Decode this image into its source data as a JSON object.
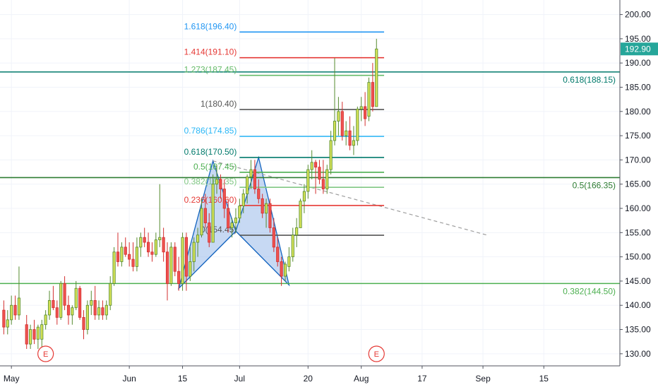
{
  "chart_data": {
    "type": "candlestick",
    "y_axis": {
      "min": 127.5,
      "max": 203,
      "ticks": [
        "130.00",
        "135.00",
        "140.00",
        "145.00",
        "150.00",
        "155.00",
        "160.00",
        "165.00",
        "170.00",
        "175.00",
        "180.00",
        "185.00",
        "190.00",
        "195.00",
        "200.00"
      ],
      "tick_values": [
        130,
        135,
        140,
        145,
        150,
        155,
        160,
        165,
        170,
        175,
        180,
        185,
        190,
        195,
        200
      ],
      "position": "right"
    },
    "x_axis": {
      "labels": [
        "May",
        "Jun",
        "15",
        "Jul",
        "20",
        "Aug",
        "17",
        "Sep",
        "15"
      ],
      "label_days": [
        2,
        33,
        47,
        62,
        80,
        94,
        110,
        126,
        142
      ],
      "day_range": [
        -1,
        162
      ]
    },
    "last_price": {
      "label": "192.90",
      "value": 192.9,
      "color": "#26a69a"
    },
    "colors": {
      "up": "#d4e157",
      "up_border": "#558b2f",
      "down": "#ef5350",
      "down_border": "#d32f2f"
    },
    "candles": [
      {
        "d": 0,
        "o": 139,
        "h": 141,
        "l": 134,
        "c": 135.5
      },
      {
        "d": 1,
        "o": 135.5,
        "h": 139,
        "l": 134,
        "c": 137
      },
      {
        "d": 2,
        "o": 137,
        "h": 142,
        "l": 136,
        "c": 140
      },
      {
        "d": 3,
        "o": 140,
        "h": 142,
        "l": 137,
        "c": 138
      },
      {
        "d": 4,
        "o": 138,
        "h": 148,
        "l": 137,
        "c": 141.5
      },
      {
        "d": 6,
        "o": 136,
        "h": 138,
        "l": 131,
        "c": 132
      },
      {
        "d": 7,
        "o": 132,
        "h": 136,
        "l": 131,
        "c": 135
      },
      {
        "d": 8,
        "o": 135,
        "h": 137,
        "l": 132,
        "c": 133
      },
      {
        "d": 9,
        "o": 133,
        "h": 136,
        "l": 131,
        "c": 135.5
      },
      {
        "d": 10,
        "o": 133,
        "h": 137,
        "l": 131,
        "c": 136
      },
      {
        "d": 11,
        "o": 136,
        "h": 139,
        "l": 135,
        "c": 138
      },
      {
        "d": 12,
        "o": 138,
        "h": 143,
        "l": 137,
        "c": 141
      },
      {
        "d": 13,
        "o": 141,
        "h": 144,
        "l": 139,
        "c": 139.5
      },
      {
        "d": 14,
        "o": 139.5,
        "h": 141,
        "l": 136,
        "c": 137.5
      },
      {
        "d": 15,
        "o": 137.5,
        "h": 145,
        "l": 137,
        "c": 144.5
      },
      {
        "d": 16,
        "o": 144.5,
        "h": 146,
        "l": 139,
        "c": 140
      },
      {
        "d": 17,
        "o": 140,
        "h": 142,
        "l": 136,
        "c": 138
      },
      {
        "d": 18,
        "o": 138,
        "h": 140,
        "l": 136,
        "c": 139.5
      },
      {
        "d": 19,
        "o": 139.5,
        "h": 145,
        "l": 139,
        "c": 143.5
      },
      {
        "d": 20,
        "o": 143.5,
        "h": 144,
        "l": 137,
        "c": 137.5
      },
      {
        "d": 21,
        "o": 137.5,
        "h": 139,
        "l": 133,
        "c": 135
      },
      {
        "d": 22,
        "o": 135,
        "h": 141,
        "l": 134,
        "c": 140
      },
      {
        "d": 23,
        "o": 140,
        "h": 143,
        "l": 138,
        "c": 141
      },
      {
        "d": 24,
        "o": 141,
        "h": 144,
        "l": 137,
        "c": 138
      },
      {
        "d": 25,
        "o": 138,
        "h": 141,
        "l": 137,
        "c": 139.5
      },
      {
        "d": 26,
        "o": 139.5,
        "h": 141,
        "l": 137,
        "c": 138
      },
      {
        "d": 27,
        "o": 138,
        "h": 141,
        "l": 137,
        "c": 140
      },
      {
        "d": 28,
        "o": 140,
        "h": 146,
        "l": 139,
        "c": 144.5
      },
      {
        "d": 29,
        "o": 144.5,
        "h": 152,
        "l": 144,
        "c": 151
      },
      {
        "d": 30,
        "o": 151,
        "h": 155,
        "l": 148,
        "c": 149
      },
      {
        "d": 31,
        "o": 149,
        "h": 153,
        "l": 148,
        "c": 152
      },
      {
        "d": 32,
        "o": 152,
        "h": 154,
        "l": 150,
        "c": 150.5
      },
      {
        "d": 33,
        "o": 150.5,
        "h": 153,
        "l": 148,
        "c": 149.5
      },
      {
        "d": 34,
        "o": 149.5,
        "h": 153,
        "l": 147,
        "c": 148
      },
      {
        "d": 35,
        "o": 148,
        "h": 154,
        "l": 147,
        "c": 152
      },
      {
        "d": 36,
        "o": 152,
        "h": 155,
        "l": 150,
        "c": 154
      },
      {
        "d": 37,
        "o": 154,
        "h": 156,
        "l": 152,
        "c": 153
      },
      {
        "d": 38,
        "o": 153,
        "h": 155,
        "l": 150,
        "c": 151
      },
      {
        "d": 39,
        "o": 151,
        "h": 153,
        "l": 149,
        "c": 150.5
      },
      {
        "d": 40,
        "o": 150.5,
        "h": 155,
        "l": 150,
        "c": 153.5
      },
      {
        "d": 41,
        "o": 153.5,
        "h": 165,
        "l": 152,
        "c": 154
      },
      {
        "d": 42,
        "o": 154,
        "h": 156,
        "l": 149,
        "c": 151
      },
      {
        "d": 43,
        "o": 151,
        "h": 153,
        "l": 141,
        "c": 144.5
      },
      {
        "d": 44,
        "o": 144.5,
        "h": 153,
        "l": 144,
        "c": 152
      },
      {
        "d": 45,
        "o": 152,
        "h": 153,
        "l": 146,
        "c": 147
      },
      {
        "d": 46,
        "o": 147,
        "h": 150,
        "l": 143,
        "c": 144.5
      },
      {
        "d": 47,
        "o": 144.5,
        "h": 155,
        "l": 143,
        "c": 154
      },
      {
        "d": 48,
        "o": 154,
        "h": 155,
        "l": 143,
        "c": 146
      },
      {
        "d": 49,
        "o": 146,
        "h": 152,
        "l": 145,
        "c": 149
      },
      {
        "d": 50,
        "o": 149,
        "h": 154,
        "l": 147,
        "c": 153
      },
      {
        "d": 51,
        "o": 153,
        "h": 156,
        "l": 150,
        "c": 154.5
      },
      {
        "d": 52,
        "o": 154.5,
        "h": 162,
        "l": 154,
        "c": 160
      },
      {
        "d": 53,
        "o": 160,
        "h": 163,
        "l": 156,
        "c": 157
      },
      {
        "d": 54,
        "o": 157,
        "h": 159,
        "l": 152,
        "c": 153
      },
      {
        "d": 55,
        "o": 153,
        "h": 167,
        "l": 153,
        "c": 165
      },
      {
        "d": 56,
        "o": 165,
        "h": 169,
        "l": 163,
        "c": 166
      },
      {
        "d": 57,
        "o": 166,
        "h": 167,
        "l": 162,
        "c": 164
      },
      {
        "d": 58,
        "o": 164,
        "h": 166,
        "l": 158,
        "c": 160
      },
      {
        "d": 59,
        "o": 160,
        "h": 162,
        "l": 155,
        "c": 156
      },
      {
        "d": 60,
        "o": 156,
        "h": 158,
        "l": 154,
        "c": 157
      },
      {
        "d": 61,
        "o": 157,
        "h": 160,
        "l": 155,
        "c": 158
      },
      {
        "d": 62,
        "o": 158,
        "h": 162,
        "l": 157,
        "c": 160.5
      },
      {
        "d": 63,
        "o": 160.5,
        "h": 164,
        "l": 159,
        "c": 163
      },
      {
        "d": 64,
        "o": 163,
        "h": 167,
        "l": 161,
        "c": 166.5
      },
      {
        "d": 65,
        "o": 166.5,
        "h": 170,
        "l": 164,
        "c": 168
      },
      {
        "d": 66,
        "o": 168,
        "h": 170,
        "l": 163,
        "c": 164
      },
      {
        "d": 67,
        "o": 164,
        "h": 166,
        "l": 161,
        "c": 162
      },
      {
        "d": 68,
        "o": 162,
        "h": 163,
        "l": 158,
        "c": 159
      },
      {
        "d": 69,
        "o": 159,
        "h": 162,
        "l": 156,
        "c": 161
      },
      {
        "d": 70,
        "o": 161,
        "h": 162,
        "l": 155,
        "c": 156
      },
      {
        "d": 71,
        "o": 156,
        "h": 158,
        "l": 151,
        "c": 152
      },
      {
        "d": 72,
        "o": 152,
        "h": 154,
        "l": 148,
        "c": 149
      },
      {
        "d": 73,
        "o": 149,
        "h": 150,
        "l": 144,
        "c": 146
      },
      {
        "d": 74,
        "o": 146,
        "h": 149,
        "l": 145,
        "c": 148.5
      },
      {
        "d": 75,
        "o": 148,
        "h": 152,
        "l": 147,
        "c": 150
      },
      {
        "d": 76,
        "o": 150,
        "h": 156,
        "l": 149,
        "c": 154.5
      },
      {
        "d": 77,
        "o": 154.5,
        "h": 158,
        "l": 152,
        "c": 156
      },
      {
        "d": 78,
        "o": 156,
        "h": 162,
        "l": 156,
        "c": 161.5
      },
      {
        "d": 79,
        "o": 161.5,
        "h": 165,
        "l": 159,
        "c": 163.5
      },
      {
        "d": 80,
        "o": 163.5,
        "h": 169,
        "l": 162,
        "c": 168
      },
      {
        "d": 81,
        "o": 168,
        "h": 172,
        "l": 166,
        "c": 169.5
      },
      {
        "d": 82,
        "o": 169.5,
        "h": 170,
        "l": 163,
        "c": 168.5
      },
      {
        "d": 83,
        "o": 168.5,
        "h": 170,
        "l": 165,
        "c": 166
      },
      {
        "d": 84,
        "o": 166,
        "h": 170,
        "l": 163,
        "c": 164
      },
      {
        "d": 85,
        "o": 164,
        "h": 169,
        "l": 163,
        "c": 168
      },
      {
        "d": 86,
        "o": 168,
        "h": 176,
        "l": 167,
        "c": 174
      },
      {
        "d": 87,
        "o": 174,
        "h": 191,
        "l": 173,
        "c": 178
      },
      {
        "d": 88,
        "o": 178,
        "h": 183,
        "l": 175,
        "c": 180
      },
      {
        "d": 89,
        "o": 180,
        "h": 182,
        "l": 174,
        "c": 175
      },
      {
        "d": 90,
        "o": 175,
        "h": 178,
        "l": 173,
        "c": 176
      },
      {
        "d": 91,
        "o": 176,
        "h": 179,
        "l": 172,
        "c": 173
      },
      {
        "d": 92,
        "o": 173,
        "h": 177,
        "l": 171,
        "c": 174
      },
      {
        "d": 93,
        "o": 174,
        "h": 181,
        "l": 173,
        "c": 180.5
      },
      {
        "d": 94,
        "o": 180.5,
        "h": 183,
        "l": 178,
        "c": 181
      },
      {
        "d": 95,
        "o": 181,
        "h": 184,
        "l": 177,
        "c": 178.5
      },
      {
        "d": 96,
        "o": 179,
        "h": 187,
        "l": 178,
        "c": 186
      },
      {
        "d": 97,
        "o": 186,
        "h": 190,
        "l": 180,
        "c": 181
      },
      {
        "d": 98,
        "o": 181,
        "h": 195,
        "l": 181,
        "c": 192.9
      }
    ],
    "fib_levels": [
      {
        "label": "1.618(196.40)",
        "value": 196.4,
        "color": "#2196f3",
        "d_start": 62,
        "d_end": 100
      },
      {
        "label": "1.414(191.10)",
        "value": 191.1,
        "color": "#e53935",
        "d_start": 62,
        "d_end": 100
      },
      {
        "label": "1.273(187.45)",
        "value": 187.45,
        "color": "#66bb6a",
        "d_start": 62,
        "d_end": 100
      },
      {
        "label": "1(180.40)",
        "value": 180.4,
        "color": "#555555",
        "d_start": 62,
        "d_end": 100
      },
      {
        "label": "0.786(174.85)",
        "value": 174.85,
        "color": "#29b6f6",
        "d_start": 62,
        "d_end": 100
      },
      {
        "label": "0.618(170.50)",
        "value": 170.5,
        "color": "#00796b",
        "d_start": 62,
        "d_end": 100
      },
      {
        "label": "0.5(167.45)",
        "value": 167.45,
        "color": "#4caf50",
        "d_start": 62,
        "d_end": 100
      },
      {
        "label": "0.382(164.35)",
        "value": 164.35,
        "color": "#81c784",
        "d_start": 62,
        "d_end": 100
      },
      {
        "label": "0.236(160.60)",
        "value": 160.6,
        "color": "#e53935",
        "d_start": 62,
        "d_end": 100
      },
      {
        "label": "0(154.45)",
        "value": 154.45,
        "color": "#555555",
        "d_start": 62,
        "d_end": 100
      }
    ],
    "horizontal_lines": [
      {
        "label": "0.618(188.15)",
        "value": 188.15,
        "color": "#00796b",
        "width": 1.6
      },
      {
        "label": "0.5(166.35)",
        "value": 166.35,
        "color": "#2e7d32",
        "width": 1.6
      },
      {
        "label": "0.382(144.50)",
        "value": 144.5,
        "color": "#4caf50",
        "width": 1.6
      }
    ],
    "harmonic_pattern": {
      "points": [
        [
          46,
          143.5
        ],
        [
          55,
          169.8
        ],
        [
          61,
          155.3
        ],
        [
          67,
          170.5
        ],
        [
          75,
          144.2
        ]
      ],
      "fill": "#90b4e8",
      "stroke": "#1565c0"
    },
    "trendline": {
      "from": [
        55,
        169.8
      ],
      "to": [
        127,
        154.5
      ],
      "color": "#9e9e9e"
    },
    "event_markers": [
      {
        "label": "E",
        "d": 11,
        "color": "#e53935"
      },
      {
        "label": "E",
        "d": 98,
        "color": "#e53935"
      }
    ]
  }
}
